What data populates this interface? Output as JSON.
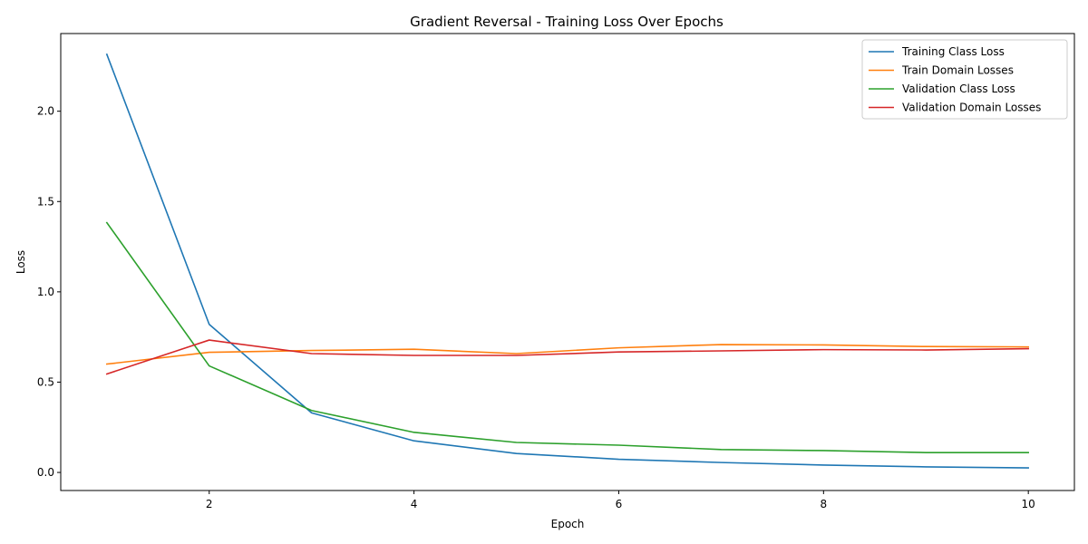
{
  "chart_data": {
    "type": "line",
    "title": "Gradient Reversal - Training Loss Over Epochs",
    "xlabel": "Epoch",
    "ylabel": "Loss",
    "x": [
      1,
      2,
      3,
      4,
      5,
      6,
      7,
      8,
      9,
      10
    ],
    "xlim": [
      0.55,
      10.45
    ],
    "ylim": [
      -0.1,
      2.43
    ],
    "xticks": [
      2,
      4,
      6,
      8,
      10
    ],
    "xtick_labels": [
      "2",
      "4",
      "6",
      "8",
      "10"
    ],
    "yticks": [
      0.0,
      0.5,
      1.0,
      1.5,
      2.0
    ],
    "ytick_labels": [
      "0.0",
      "0.5",
      "1.0",
      "1.5",
      "2.0"
    ],
    "grid": false,
    "legend_position": "top-right",
    "series": [
      {
        "name": "Training Class Loss",
        "color": "#1f77b4",
        "values": [
          2.315,
          0.82,
          0.33,
          0.175,
          0.105,
          0.073,
          0.055,
          0.041,
          0.031,
          0.025
        ]
      },
      {
        "name": "Train Domain Losses",
        "color": "#ff7f0e",
        "values": [
          0.6,
          0.665,
          0.675,
          0.682,
          0.658,
          0.69,
          0.708,
          0.706,
          0.697,
          0.695
        ]
      },
      {
        "name": "Validation Class Loss",
        "color": "#2ca02c",
        "values": [
          1.383,
          0.59,
          0.343,
          0.222,
          0.166,
          0.151,
          0.127,
          0.121,
          0.11,
          0.11
        ]
      },
      {
        "name": "Validation Domain Losses",
        "color": "#d62728",
        "values": [
          0.545,
          0.733,
          0.658,
          0.648,
          0.648,
          0.667,
          0.673,
          0.68,
          0.678,
          0.685
        ]
      }
    ]
  }
}
